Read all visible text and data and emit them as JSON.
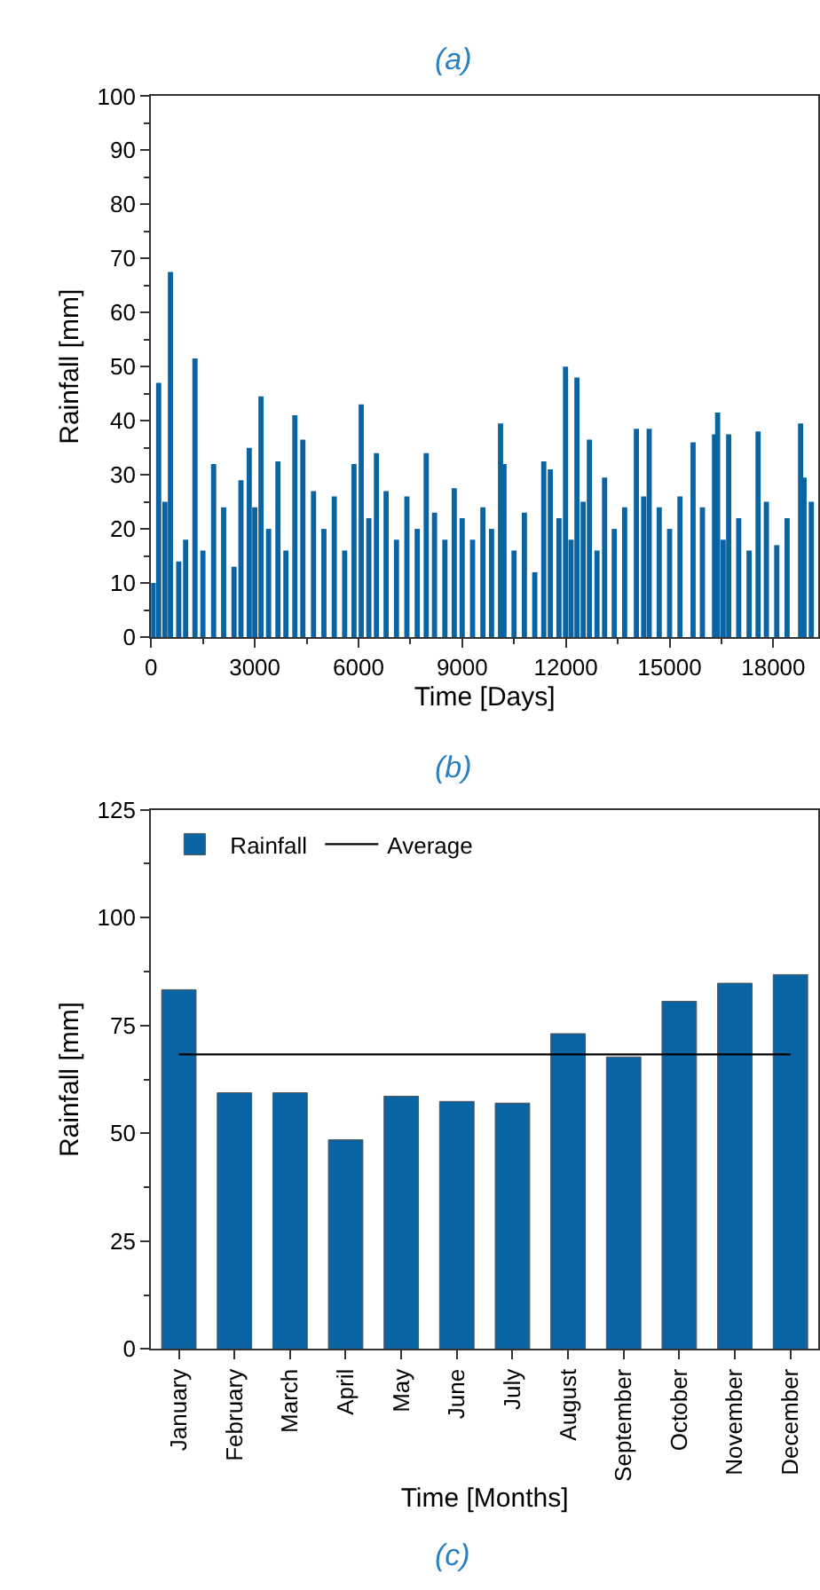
{
  "chart_data": [
    {
      "type": "bar",
      "title": "(a)",
      "xlabel": "Time [Days]",
      "ylabel": "Rainfall [mm]",
      "xlim": [
        0,
        19300
      ],
      "xticks": [
        0,
        3000,
        6000,
        9000,
        12000,
        15000,
        18000
      ],
      "ylim": [
        0,
        100
      ],
      "yticks": [
        0,
        10,
        20,
        30,
        40,
        50,
        60,
        70,
        80,
        90,
        100
      ],
      "grid": false,
      "legend": false,
      "x": [
        60,
        220,
        400,
        560,
        800,
        1000,
        1270,
        1500,
        1810,
        2100,
        2400,
        2600,
        2840,
        3000,
        3180,
        3400,
        3670,
        3900,
        4160,
        4390,
        4700,
        5000,
        5300,
        5600,
        5870,
        6080,
        6300,
        6520,
        6800,
        7100,
        7400,
        7700,
        7960,
        8200,
        8500,
        8770,
        9000,
        9300,
        9600,
        9850,
        10110,
        10210,
        10500,
        10800,
        11100,
        11360,
        11550,
        11800,
        11990,
        12150,
        12320,
        12500,
        12680,
        12900,
        13120,
        13400,
        13700,
        14040,
        14250,
        14410,
        14700,
        15000,
        15300,
        15680,
        15950,
        16300,
        16390,
        16550,
        16710,
        17000,
        17300,
        17560,
        17800,
        18100,
        18400,
        18790,
        18890,
        19100
      ],
      "series": [
        {
          "color": "#0a64a4",
          "values": [
            10,
            47,
            25,
            67.5,
            14,
            18,
            51.5,
            16,
            32,
            24,
            13,
            29,
            35,
            24,
            44.5,
            20,
            32.5,
            16,
            41,
            36.5,
            27,
            20,
            26,
            16,
            32,
            43,
            22,
            34,
            27,
            18,
            26,
            20,
            34,
            23,
            18,
            27.5,
            22,
            18,
            24,
            20,
            39.5,
            32,
            16,
            23,
            12,
            32.5,
            31,
            22,
            50,
            18,
            48,
            25,
            36.5,
            16,
            29.5,
            20,
            24,
            38.5,
            26,
            38.5,
            24,
            20,
            26,
            36,
            24,
            37.5,
            41.5,
            18,
            37.5,
            22,
            16,
            38,
            25,
            17,
            22,
            39.5,
            29.5,
            25
          ]
        }
      ]
    },
    {
      "type": "bar",
      "title": "(b)",
      "xlabel": "Time [Months]",
      "ylabel": "Rainfall [mm]",
      "ylim": [
        0,
        125
      ],
      "yticks": [
        0,
        25,
        50,
        75,
        100,
        125
      ],
      "grid": false,
      "legend": "top left",
      "categories": [
        "January",
        "February",
        "March",
        "April",
        "May",
        "June",
        "July",
        "August",
        "September",
        "October",
        "November",
        "December"
      ],
      "series": [
        {
          "name": "Rainfall",
          "color": "#0a64a4",
          "values": [
            83.3,
            59.4,
            59.4,
            48.5,
            58.6,
            57.4,
            57.0,
            73.1,
            67.7,
            80.6,
            84.8,
            86.8
          ]
        },
        {
          "name": "Average",
          "type": "line",
          "color": "#000000",
          "values": [
            68.3,
            68.3,
            68.3,
            68.3,
            68.3,
            68.3,
            68.3,
            68.3,
            68.3,
            68.3,
            68.3,
            68.3
          ]
        }
      ],
      "annotations": [
        "(c)"
      ]
    }
  ]
}
